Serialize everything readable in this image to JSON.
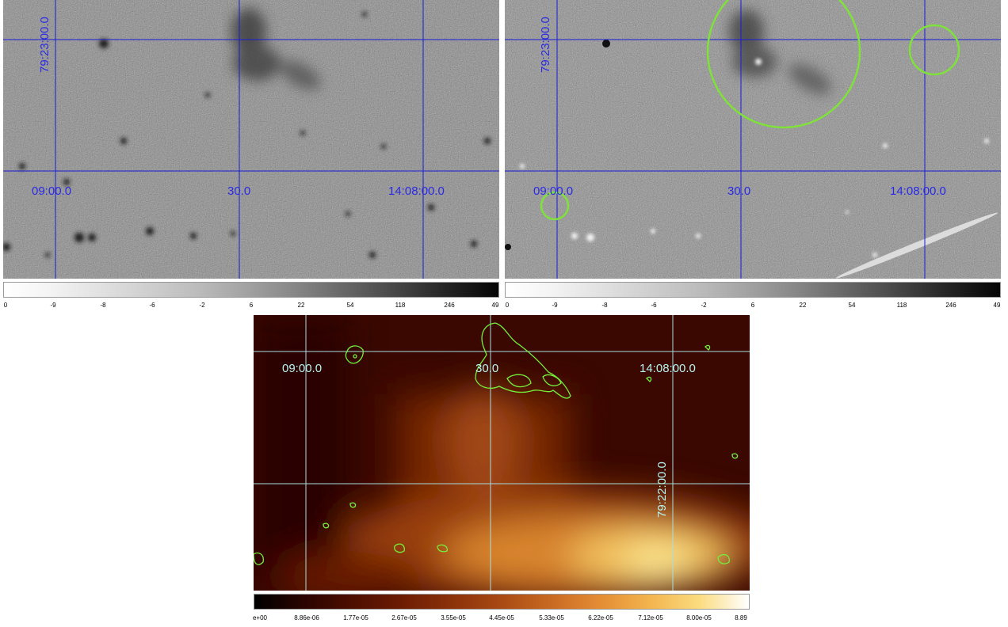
{
  "panels": {
    "top_left": {
      "ra_labels": [
        "09:00.0",
        "30.0",
        "14:08:00.0"
      ],
      "dec_label": "79:23:00.0"
    },
    "top_right": {
      "ra_labels": [
        "09:00.0",
        "30.0",
        "14:08:00.0"
      ],
      "dec_label": "79:23:00.0"
    },
    "bottom": {
      "ra_labels": [
        "09:00.0",
        "30.0",
        "14:08:00.0"
      ],
      "dec_label": "79:22:00.0"
    }
  },
  "colorbars": {
    "grey_ticks": [
      "0",
      "-9",
      "-8",
      "-6",
      "-2",
      "6",
      "22",
      "54",
      "118",
      "246",
      "49"
    ],
    "heat_ticks": [
      "e+00",
      "8.86e-06",
      "1.77e-05",
      "2.67e-05",
      "3.55e-05",
      "4.45e-05",
      "5.33e-05",
      "6.22e-05",
      "7.12e-05",
      "8.00e-05",
      "8.89"
    ]
  },
  "colors": {
    "grid_blue": "#1a1ad6",
    "grid_cyan": "#a8dede",
    "region_green": "#7fe23a",
    "contour_green": "#74f03a"
  }
}
